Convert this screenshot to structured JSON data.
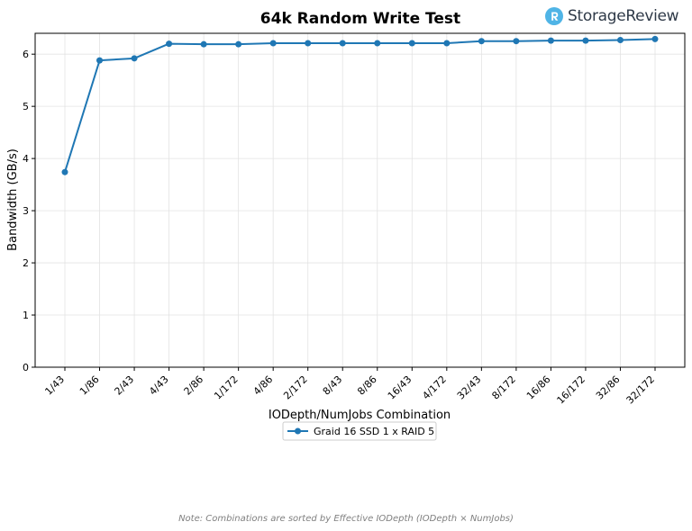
{
  "brand": {
    "name": "StorageReview",
    "accent_color": "#4fb4e6",
    "text_color": "#2f3a48"
  },
  "footnote": "Note: Combinations are sorted by Effective IODepth (IODepth × NumJobs)",
  "chart_data": {
    "type": "line",
    "title": "64k Random Write Test",
    "xlabel": "IODepth/NumJobs Combination",
    "ylabel": "Bandwidth (GB/s)",
    "ylim": [
      0,
      6.4
    ],
    "yticks": [
      0,
      1,
      2,
      3,
      4,
      5,
      6
    ],
    "grid": true,
    "legend_position": "bottom-center",
    "categories": [
      "1/43",
      "1/86",
      "2/43",
      "4/43",
      "2/86",
      "1/172",
      "4/86",
      "2/172",
      "8/43",
      "8/86",
      "16/43",
      "4/172",
      "32/43",
      "8/172",
      "16/86",
      "16/172",
      "32/86",
      "32/172"
    ],
    "series": [
      {
        "name": "Graid 16 SSD 1 x RAID 5",
        "color": "#1f77b4",
        "values": [
          3.74,
          5.88,
          5.92,
          6.2,
          6.19,
          6.19,
          6.21,
          6.21,
          6.21,
          6.21,
          6.21,
          6.21,
          6.25,
          6.25,
          6.26,
          6.26,
          6.27,
          6.29
        ]
      }
    ]
  }
}
